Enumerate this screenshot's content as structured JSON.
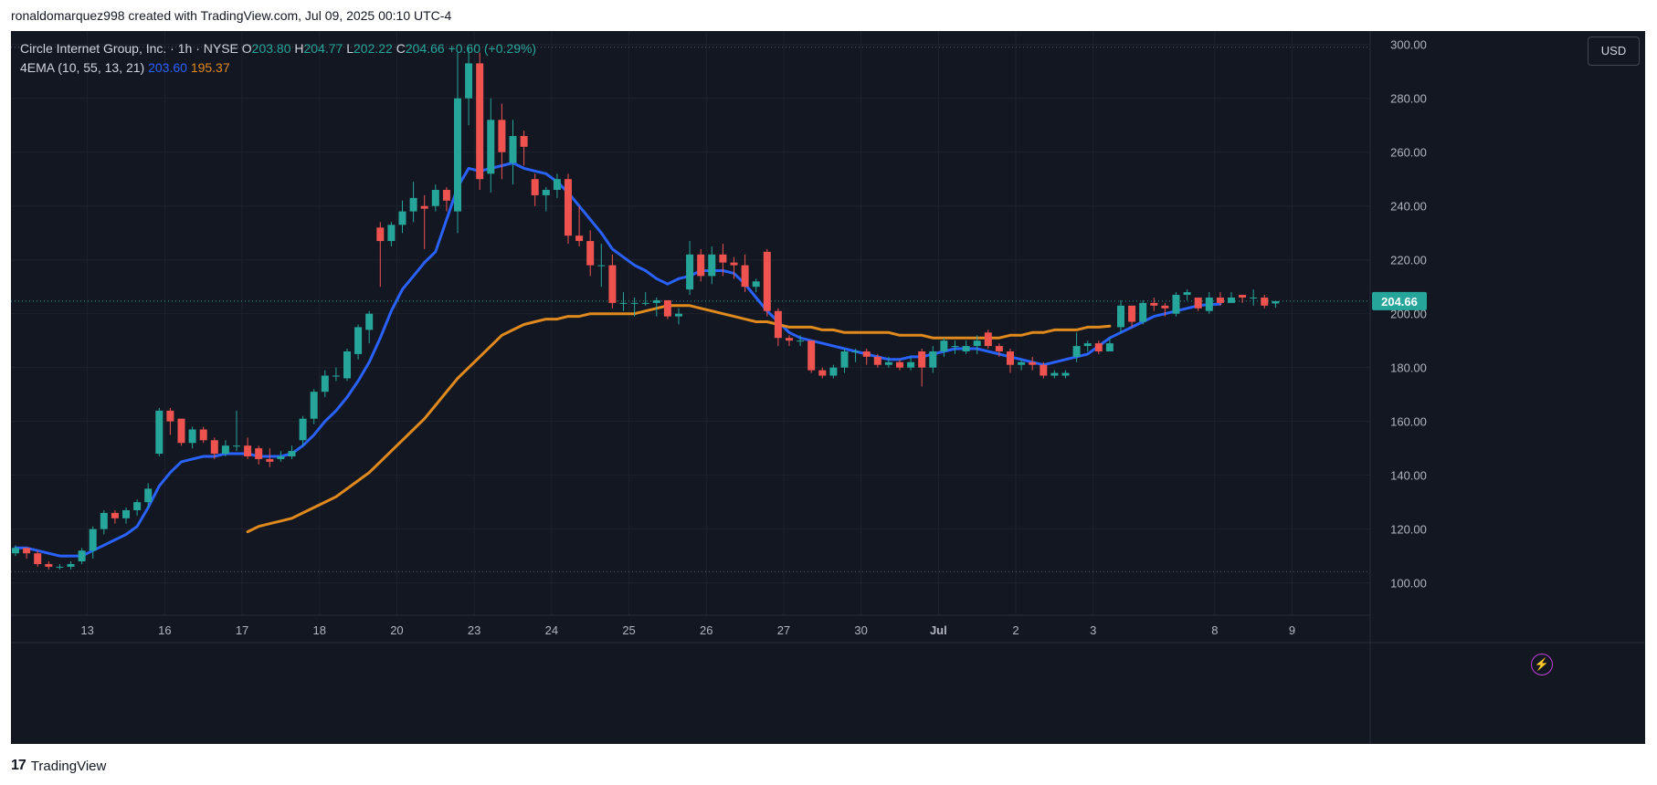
{
  "header": {
    "text": "ronaldomarquez998 created with TradingView.com, Jul 09, 2025 00:10 UTC-4"
  },
  "legend": {
    "symbol": "Circle Internet Group, Inc. · 1h · NYSE",
    "o_label": "O",
    "o": "203.80",
    "h_label": "H",
    "h": "204.77",
    "l_label": "L",
    "l": "202.22",
    "c_label": "C",
    "c": "204.66",
    "change": "+0.60 (+0.29%)",
    "indicator": "4EMA (10, 55, 13, 21)",
    "ema_fast": "203.60",
    "ema_slow": "195.37"
  },
  "currency": "USD",
  "footer": {
    "logo": "17",
    "brand": "TradingView"
  },
  "colors": {
    "background": "#131722",
    "up": "#26a69a",
    "down": "#ef5350",
    "ema_fast": "#2962ff",
    "ema_slow": "#e08a1e",
    "price_tag": "#26a69a",
    "grid": "#1e222d",
    "text": "#b2b5be"
  },
  "chart_data": {
    "type": "candlestick",
    "title": "Circle Internet Group, Inc. · 1h · NYSE",
    "ylim": [
      88,
      305
    ],
    "y_ticks": [
      "100.00",
      "120.00",
      "140.00",
      "160.00",
      "180.00",
      "200.00",
      "220.00",
      "240.00",
      "260.00",
      "280.00",
      "300.00"
    ],
    "y_tick_values": [
      100,
      120,
      140,
      160,
      180,
      200,
      220,
      240,
      260,
      280,
      300
    ],
    "x_ticks": [
      "13",
      "16",
      "17",
      "18",
      "20",
      "23",
      "24",
      "25",
      "26",
      "27",
      "30",
      "Jul",
      "2",
      "3",
      "8",
      "9"
    ],
    "x_tick_index": [
      6.5,
      13.5,
      20.5,
      27.5,
      34.5,
      41.5,
      48.5,
      55.5,
      62.5,
      69.5,
      76.5,
      83.5,
      90.5,
      97.5,
      108.5,
      115.5
    ],
    "current_price": "204.66",
    "current_price_value": 204.66,
    "dotted_levels": [
      299,
      104.2
    ],
    "candles": [
      [
        111,
        113,
        114,
        110
      ],
      [
        113,
        111,
        113,
        109
      ],
      [
        111,
        107,
        112,
        106
      ],
      [
        107,
        106,
        108,
        105
      ],
      [
        106,
        106,
        107,
        105
      ],
      [
        106,
        107,
        108,
        105
      ],
      [
        108,
        112,
        113,
        107
      ],
      [
        112,
        120,
        121,
        109
      ],
      [
        120,
        126,
        127,
        118
      ],
      [
        126,
        124,
        127,
        122
      ],
      [
        124,
        127,
        128,
        122
      ],
      [
        127,
        130,
        131,
        125
      ],
      [
        130,
        135,
        137,
        128
      ],
      [
        148,
        164,
        165,
        147
      ],
      [
        164,
        160,
        165,
        155
      ],
      [
        161,
        152,
        161,
        151
      ],
      [
        152,
        157,
        158,
        150
      ],
      [
        157,
        153,
        158,
        152
      ],
      [
        153,
        148,
        154,
        146
      ],
      [
        148,
        151,
        153,
        147
      ],
      [
        151,
        151,
        164,
        149
      ],
      [
        151,
        147,
        154,
        146
      ],
      [
        150,
        146,
        151,
        144
      ],
      [
        146,
        145,
        150,
        143
      ],
      [
        146,
        147,
        149,
        145
      ],
      [
        147,
        149,
        151,
        146
      ],
      [
        153,
        161,
        162,
        151
      ],
      [
        161,
        171,
        172,
        159
      ],
      [
        171,
        177,
        179,
        169
      ],
      [
        177,
        177,
        180,
        175
      ],
      [
        176,
        186,
        187,
        175
      ],
      [
        185,
        195,
        196,
        183
      ],
      [
        194,
        200,
        201,
        189
      ],
      [
        232,
        227,
        234,
        210
      ],
      [
        227,
        233,
        234,
        225
      ],
      [
        233,
        238,
        242,
        230
      ],
      [
        238,
        243,
        249,
        234
      ],
      [
        240,
        239,
        244,
        224
      ],
      [
        240,
        246,
        248,
        238
      ],
      [
        246,
        242,
        247,
        238
      ],
      [
        238,
        280,
        297,
        230
      ],
      [
        280,
        293,
        299,
        270
      ],
      [
        293,
        250,
        297,
        246
      ],
      [
        252,
        272,
        280,
        245
      ],
      [
        272,
        260,
        278,
        250
      ],
      [
        256,
        266,
        272,
        248
      ],
      [
        266,
        262,
        268,
        255
      ],
      [
        250,
        244,
        252,
        240
      ],
      [
        244,
        246,
        247,
        238
      ],
      [
        246,
        250,
        252,
        243
      ],
      [
        250,
        229,
        252,
        226
      ],
      [
        229,
        227,
        240,
        225
      ],
      [
        227,
        218,
        231,
        214
      ],
      [
        218,
        218,
        226,
        210
      ],
      [
        218,
        204,
        222,
        202
      ],
      [
        204,
        204,
        208,
        201
      ],
      [
        204,
        204,
        206,
        199
      ],
      [
        204,
        204,
        208,
        203
      ],
      [
        204,
        205,
        206,
        199
      ],
      [
        205,
        199,
        205,
        198
      ],
      [
        199,
        200,
        202,
        196
      ],
      [
        209,
        222,
        227,
        207
      ],
      [
        222,
        214,
        224,
        212
      ],
      [
        214,
        222,
        225,
        211
      ],
      [
        222,
        219,
        226,
        214
      ],
      [
        219,
        218,
        221,
        213
      ],
      [
        218,
        210,
        222,
        208
      ],
      [
        210,
        212,
        213,
        208
      ],
      [
        223,
        201,
        224,
        199
      ],
      [
        201,
        191,
        202,
        188
      ],
      [
        191,
        190,
        192,
        188
      ],
      [
        190,
        190,
        192,
        188
      ],
      [
        190,
        179,
        190,
        178
      ],
      [
        179,
        177,
        180,
        176
      ],
      [
        177,
        180,
        181,
        176
      ],
      [
        180,
        186,
        187,
        178
      ],
      [
        186,
        186,
        187,
        182
      ],
      [
        186,
        184,
        187,
        181
      ],
      [
        184,
        181,
        185,
        180
      ],
      [
        181,
        182,
        184,
        180
      ],
      [
        182,
        180,
        183,
        179
      ],
      [
        180,
        182,
        184,
        179
      ],
      [
        186,
        180,
        187,
        173
      ],
      [
        180,
        186,
        188,
        178
      ],
      [
        186,
        190,
        191,
        184
      ],
      [
        188,
        188,
        190,
        185
      ],
      [
        186,
        188,
        190,
        185
      ],
      [
        188,
        190,
        192,
        185
      ],
      [
        193,
        188,
        194,
        187
      ],
      [
        188,
        186,
        189,
        184
      ],
      [
        186,
        181,
        187,
        178
      ],
      [
        181,
        182,
        183,
        179
      ],
      [
        182,
        181,
        184,
        179
      ],
      [
        181,
        177,
        182,
        176
      ],
      [
        177,
        178,
        179,
        176
      ],
      [
        177,
        178,
        179,
        176
      ],
      [
        184,
        188,
        193,
        182
      ],
      [
        188,
        189,
        190,
        186
      ],
      [
        189,
        186,
        190,
        185
      ],
      [
        186,
        189,
        191,
        186
      ],
      [
        195,
        203,
        205,
        193
      ],
      [
        203,
        197,
        203,
        195
      ],
      [
        197,
        204,
        205,
        196
      ],
      [
        204,
        203,
        206,
        201
      ],
      [
        203,
        202,
        204,
        199
      ],
      [
        200,
        207,
        208,
        199
      ],
      [
        207,
        208,
        209,
        205
      ],
      [
        206,
        202,
        206,
        201
      ],
      [
        201,
        206,
        208,
        200
      ],
      [
        206,
        204,
        208,
        203
      ],
      [
        204,
        206,
        208,
        204
      ],
      [
        207,
        206,
        207,
        204
      ],
      [
        206,
        206,
        209,
        203
      ],
      [
        206,
        203,
        207,
        202
      ],
      [
        203.8,
        204.66,
        204.77,
        202.22
      ]
    ],
    "series": [
      {
        "name": "EMA 10",
        "start_index": 0,
        "values": [
          113,
          113,
          112,
          111,
          110,
          110,
          110,
          112,
          114,
          116,
          118,
          121,
          128,
          136,
          141,
          145,
          146,
          147,
          147,
          148,
          148,
          148,
          147,
          147,
          147,
          148,
          151,
          155,
          160,
          164,
          169,
          175,
          182,
          191,
          201,
          209,
          214,
          219,
          223,
          235,
          247,
          254,
          253,
          254,
          255,
          256,
          254,
          253,
          252,
          249,
          245,
          240,
          235,
          230,
          224,
          221,
          218,
          216,
          213,
          211,
          213,
          214,
          216,
          216,
          216,
          215,
          211,
          206,
          201,
          197,
          193,
          191,
          190,
          189,
          188,
          187,
          186,
          185,
          184,
          183,
          183,
          184,
          184,
          185,
          186,
          187,
          187,
          187,
          186,
          185,
          184,
          183,
          182,
          181,
          182,
          183,
          184,
          185,
          188,
          191,
          193,
          195,
          197,
          199,
          200,
          201,
          202,
          203,
          203.4,
          203.6
        ]
      },
      {
        "name": "EMA 55",
        "start_index": 21,
        "values": [
          119,
          121,
          122,
          123,
          124,
          126,
          128,
          130,
          132,
          135,
          138,
          141,
          145,
          149,
          153,
          157,
          161,
          166,
          171,
          176,
          180,
          184,
          188,
          192,
          194,
          196,
          197,
          198,
          198,
          199,
          199,
          200,
          200,
          200,
          200,
          200,
          201,
          202,
          203,
          203,
          203,
          202,
          201,
          200,
          199,
          198,
          197,
          197,
          196,
          195,
          195,
          195,
          194,
          194,
          193,
          193,
          193,
          193,
          193,
          192,
          192,
          192,
          191,
          191,
          191,
          191,
          191,
          191,
          191,
          192,
          192,
          193,
          193,
          194,
          194,
          194,
          195,
          195,
          195.37
        ]
      }
    ]
  }
}
